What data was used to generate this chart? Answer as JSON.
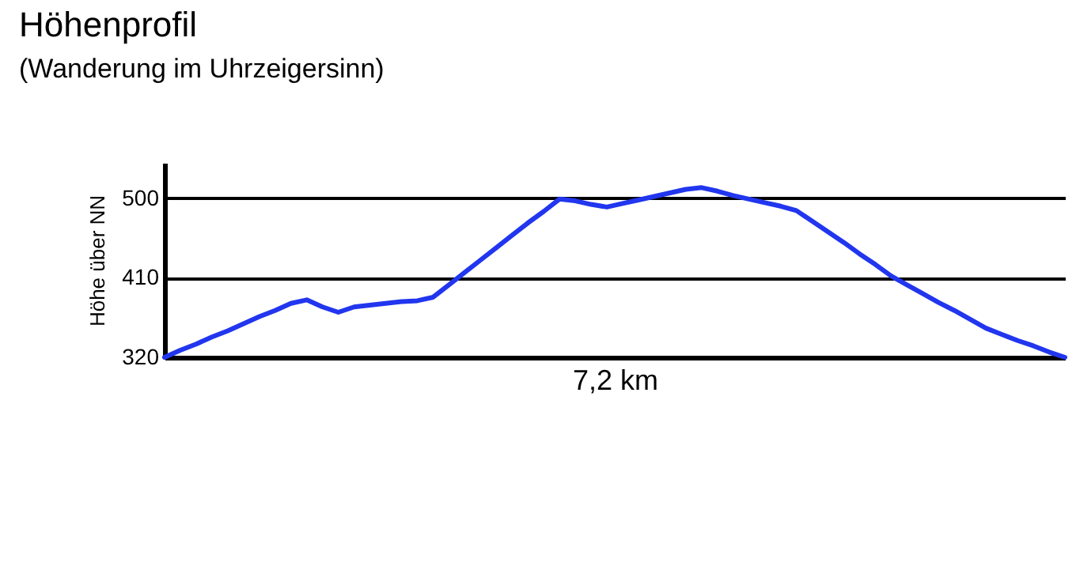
{
  "chart_data": {
    "type": "line",
    "title": "Höhenprofil",
    "subtitle": "(Wanderung im Uhrzeigersinn)",
    "xlabel": "7,2 km",
    "ylabel": "Höhe über NN",
    "categories": [
      null,
      null,
      null,
      null,
      null,
      null,
      null,
      null,
      null,
      null,
      null,
      null,
      null,
      null,
      null,
      null,
      null,
      null,
      null,
      null,
      null,
      null,
      null,
      null,
      null,
      null,
      null,
      null,
      null,
      null,
      null,
      null,
      null,
      null,
      null,
      null,
      null,
      null,
      null,
      null,
      null,
      null,
      null,
      null,
      null,
      null,
      null,
      null,
      null,
      null,
      null,
      null,
      null,
      null,
      null,
      null,
      null,
      null
    ],
    "series": [
      {
        "color": "#2136ee",
        "values": [
          320,
          328,
          335,
          343,
          350,
          358,
          366,
          373,
          381,
          385,
          377,
          371,
          377,
          379,
          381,
          383,
          384,
          388,
          402,
          416,
          430,
          444,
          458,
          472,
          485,
          499,
          497,
          493,
          490,
          494,
          498,
          502,
          506,
          510,
          512,
          508,
          503,
          499,
          495,
          491,
          486,
          474,
          462,
          450,
          437,
          425,
          412,
          402,
          392,
          382,
          373,
          363,
          353,
          346,
          339,
          333,
          326,
          320
        ]
      }
    ],
    "ylim": [
      320,
      540
    ],
    "yticks": [
      320,
      410,
      500
    ],
    "grid": "y",
    "tick_labels": "y",
    "marker": "none",
    "line_style": "solid"
  }
}
